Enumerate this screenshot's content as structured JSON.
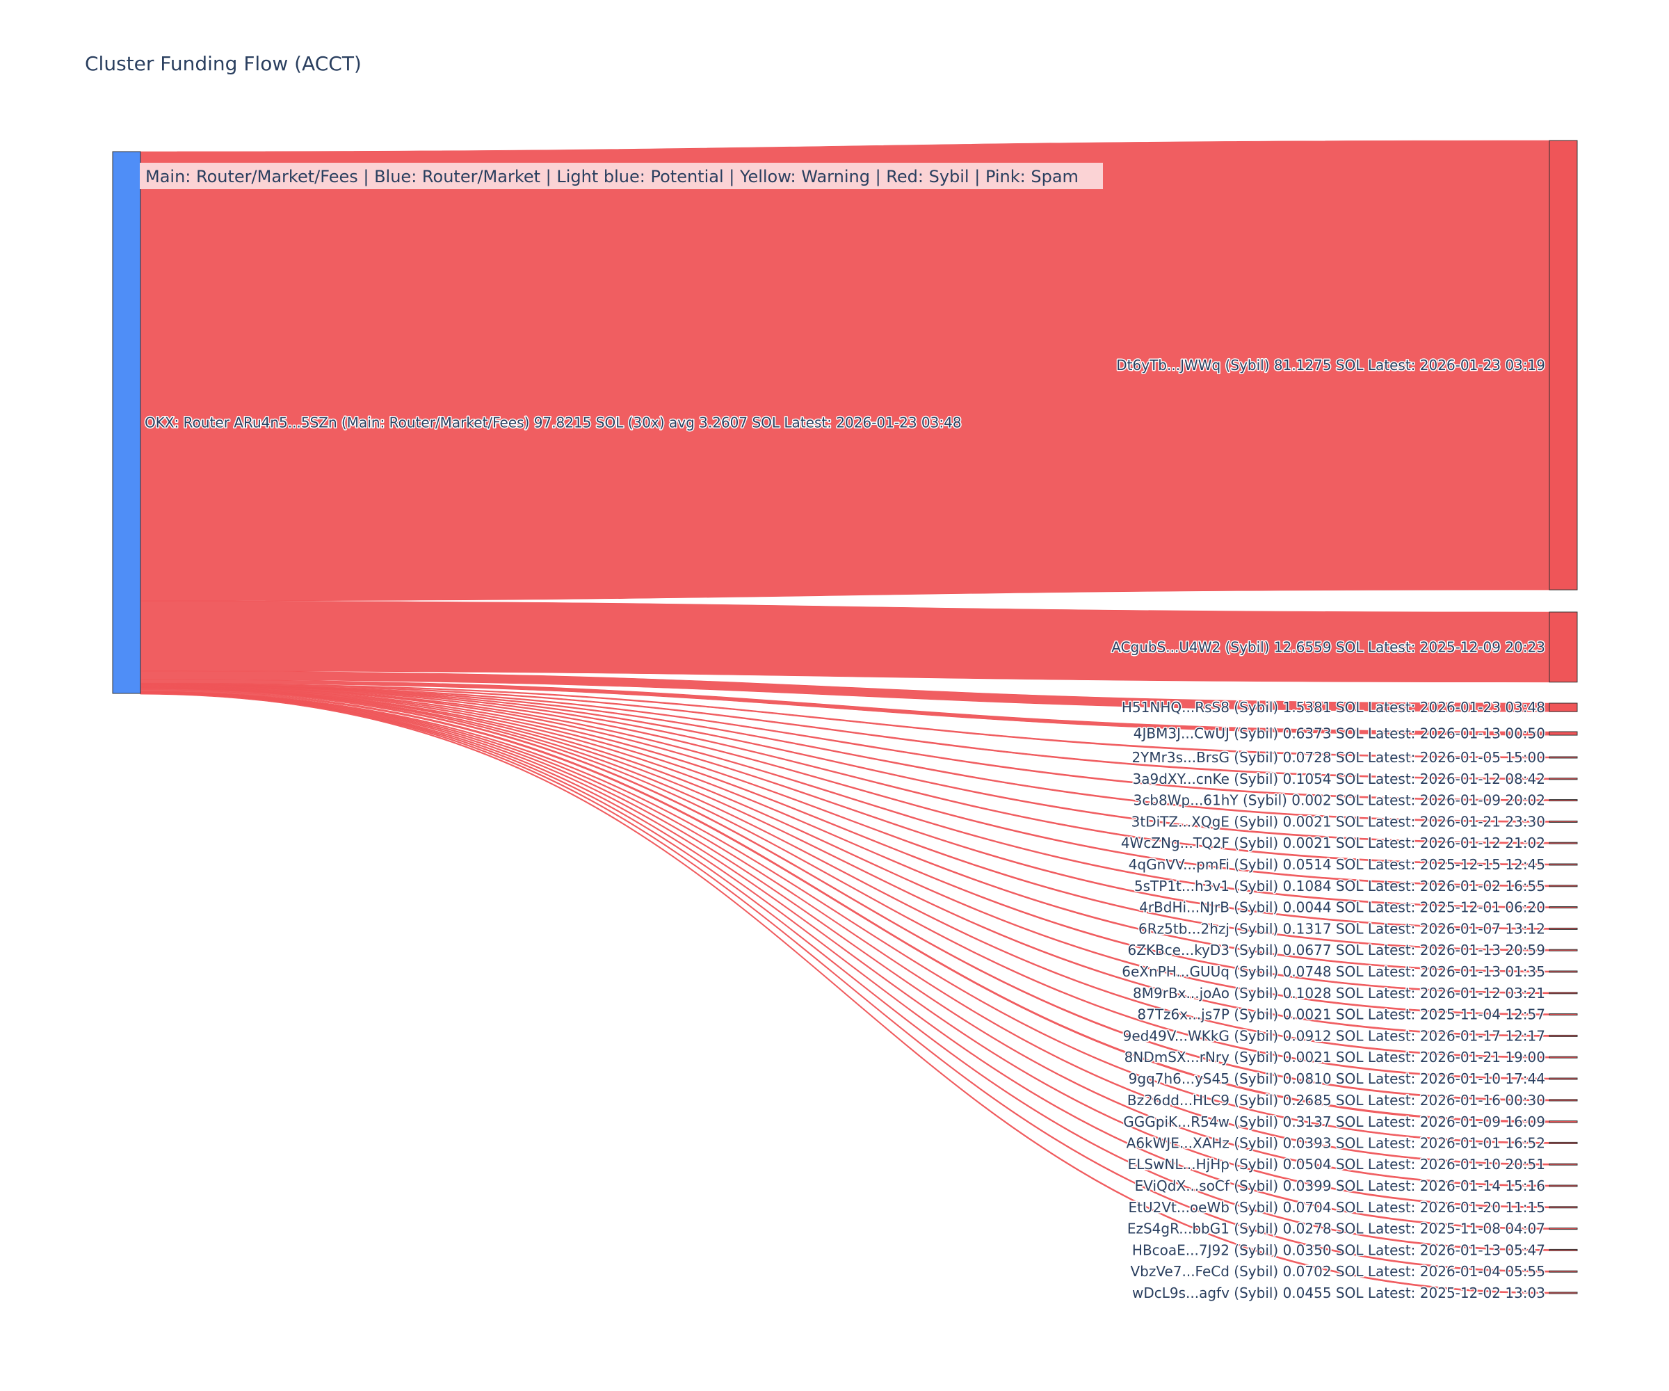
{
  "colors": {
    "source": "#4f8ef7",
    "sybil": "#ef5558",
    "link": "#ef5558",
    "text": "#2a3f5f",
    "legend_bg": "#fbd3d5"
  },
  "chart_data": {
    "type": "sankey",
    "title": "Cluster Funding Flow (ACCT)",
    "legend_text": "Main: Router/Market/Fees  |  Blue: Router/Market | Light blue: Potential | Yellow: Warning | Red: Sybil | Pink: Spam",
    "source": {
      "label": "OKX: Router ARu4n5...5SZn (Main: Router/Market/Fees) 97.8215 SOL (30x) avg 3.2607 SOL Latest: 2026-01-23 03:48",
      "category": "Main: Router/Market/Fees"
    },
    "targets": [
      {
        "label": "Dt6yTb...JWWq (Sybil) 81.1275 SOL Latest: 2026-01-23 03:19",
        "value": 81.1275
      },
      {
        "label": "ACgubS...U4W2 (Sybil) 12.6559 SOL Latest: 2025-12-09 20:23",
        "value": 12.6559
      },
      {
        "label": "H51NHQ...RsS8 (Sybil) 1.5381 SOL Latest: 2026-01-23 03:48",
        "value": 1.5381
      },
      {
        "label": "4JBM3J...CwUJ (Sybil) 0.6373 SOL Latest: 2026-01-13 00:50",
        "value": 0.6373
      },
      {
        "label": "2YMr3s...BrsG (Sybil) 0.0728 SOL Latest: 2026-01-05 15:00",
        "value": 0.0728
      },
      {
        "label": "3a9dXY...cnKe (Sybil) 0.1054 SOL Latest: 2026-01-12 08:42",
        "value": 0.1054
      },
      {
        "label": "3cb8Wp...61hY (Sybil) 0.002 SOL Latest: 2026-01-09 20:02",
        "value": 0.002
      },
      {
        "label": "3tDiTZ...XQgE (Sybil) 0.0021 SOL Latest: 2026-01-21 23:30",
        "value": 0.0021
      },
      {
        "label": "4WcZNg...TQ2F (Sybil) 0.0021 SOL Latest: 2026-01-12 21:02",
        "value": 0.0021
      },
      {
        "label": "4qGnVV...pmFi (Sybil) 0.0514 SOL Latest: 2025-12-15 12:45",
        "value": 0.0514
      },
      {
        "label": "5sTP1t...h3v1 (Sybil) 0.1084 SOL Latest: 2026-01-02 16:55",
        "value": 0.1084
      },
      {
        "label": "4rBdHi...NJrB (Sybil) 0.0044 SOL Latest: 2025-12-01 06:20",
        "value": 0.0044
      },
      {
        "label": "6Rz5tb...2hzj (Sybil) 0.1317 SOL Latest: 2026-01-07 13:12",
        "value": 0.1317
      },
      {
        "label": "6ZKBce...kyD3 (Sybil) 0.0677 SOL Latest: 2026-01-13 20:59",
        "value": 0.0677
      },
      {
        "label": "6eXnPH...GUUq (Sybil) 0.0748 SOL Latest: 2026-01-13 01:35",
        "value": 0.0748
      },
      {
        "label": "8M9rBx...joAo (Sybil) 0.1028 SOL Latest: 2026-01-12 03:21",
        "value": 0.1028
      },
      {
        "label": "87Tz6x...js7P (Sybil) 0.0021 SOL Latest: 2025-11-04 12:57",
        "value": 0.0021
      },
      {
        "label": "9ed49V...WKkG (Sybil) 0.0912 SOL Latest: 2026-01-17 12:17",
        "value": 0.0912
      },
      {
        "label": "8NDmSX...rNry (Sybil) 0.0021 SOL Latest: 2026-01-21 19:00",
        "value": 0.0021
      },
      {
        "label": "9gq7h6...yS45 (Sybil) 0.0810 SOL Latest: 2026-01-10 17:44",
        "value": 0.081
      },
      {
        "label": "Bz26dd...HLC9 (Sybil) 0.2685 SOL Latest: 2026-01-16 00:30",
        "value": 0.2685
      },
      {
        "label": "GGGpiK...R54w (Sybil) 0.3137 SOL Latest: 2026-01-09 16:09",
        "value": 0.3137
      },
      {
        "label": "A6kWJE...XAHz (Sybil) 0.0393 SOL Latest: 2026-01-01 16:52",
        "value": 0.0393
      },
      {
        "label": "ELSwNL...HjHp (Sybil) 0.0504 SOL Latest: 2026-01-10 20:51",
        "value": 0.0504
      },
      {
        "label": "EViQdX...soCf (Sybil) 0.0399 SOL Latest: 2026-01-14 15:16",
        "value": 0.0399
      },
      {
        "label": "EtU2Vt...oeWb (Sybil) 0.0704 SOL Latest: 2026-01-20 11:15",
        "value": 0.0704
      },
      {
        "label": "EzS4gR...bbG1 (Sybil) 0.0278 SOL Latest: 2025-11-08 04:07",
        "value": 0.0278
      },
      {
        "label": "HBcoaE...7J92 (Sybil) 0.0350 SOL Latest: 2026-01-13 05:47",
        "value": 0.035
      },
      {
        "label": "VbzVe7...FeCd (Sybil) 0.0702 SOL Latest: 2026-01-04 05:55",
        "value": 0.0702
      },
      {
        "label": "wDcL9s...agfv (Sybil) 0.0455 SOL Latest: 2025-12-02 13:03",
        "value": 0.0455
      }
    ]
  }
}
